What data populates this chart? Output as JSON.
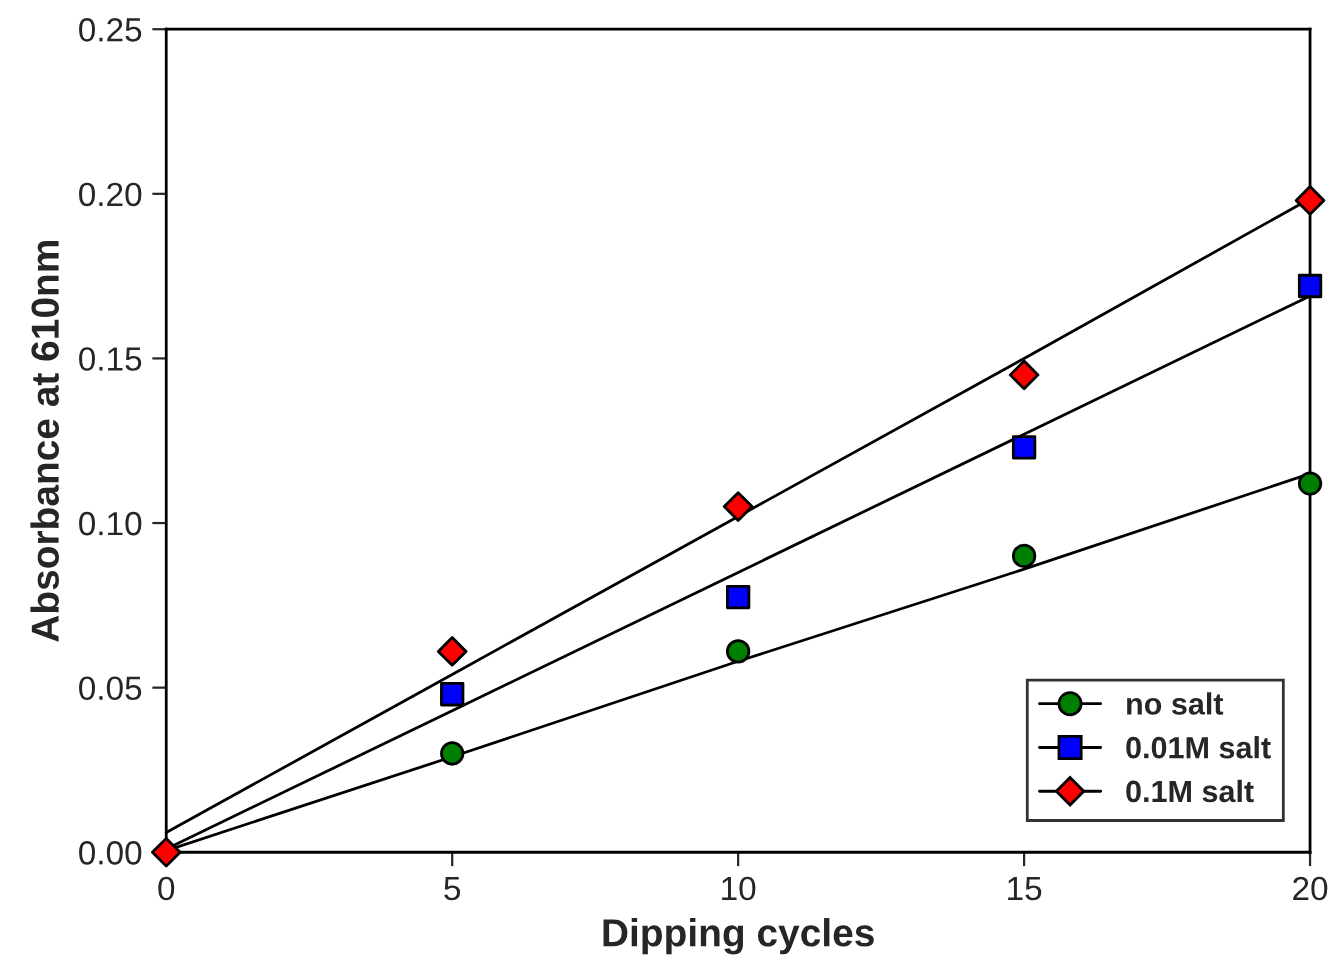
{
  "chart_data": {
    "type": "scatter",
    "xlabel": "Dipping cycles",
    "ylabel": "Absorbance at 610nm",
    "x": [
      0,
      5,
      10,
      15,
      20
    ],
    "series": [
      {
        "name": "no salt",
        "color": "#008000",
        "marker": "circle",
        "values": [
          null,
          0.03,
          0.061,
          0.09,
          0.112
        ]
      },
      {
        "name": "0.01M salt",
        "color": "#0000ff",
        "marker": "square",
        "values": [
          null,
          0.048,
          0.0775,
          0.123,
          0.172
        ]
      },
      {
        "name": "0.1M salt",
        "color": "#ff0000",
        "marker": "diamond",
        "values": [
          0,
          0.061,
          0.105,
          0.145,
          0.198
        ]
      },
      {
        "type": "line",
        "color": "#000000",
        "marker": "none",
        "values": [
          0.0005,
          0.029,
          0.058,
          0.086,
          0.115
        ]
      },
      {
        "type": "line",
        "color": "#000000",
        "marker": "none",
        "values": [
          0.001,
          0.043,
          0.085,
          0.127,
          0.169
        ]
      },
      {
        "type": "line",
        "color": "#000000",
        "marker": "none",
        "values": [
          0.006,
          0.054,
          0.102,
          0.15,
          0.1985
        ]
      }
    ],
    "xlim": [
      0,
      20
    ],
    "ylim": [
      0,
      0.25
    ],
    "xticks": [
      0,
      5,
      10,
      15,
      20
    ],
    "yticks": [
      {
        "value": 0,
        "label": "0.00"
      },
      {
        "value": 0.05,
        "label": "0.05"
      },
      {
        "value": 0.1,
        "label": "0.10"
      },
      {
        "value": 0.15,
        "label": "0.15"
      },
      {
        "value": 0.2,
        "label": "0.20"
      },
      {
        "value": 0.25,
        "label": "0.25"
      }
    ],
    "grid": false,
    "legend": "bottom right",
    "line_style": "solid"
  }
}
